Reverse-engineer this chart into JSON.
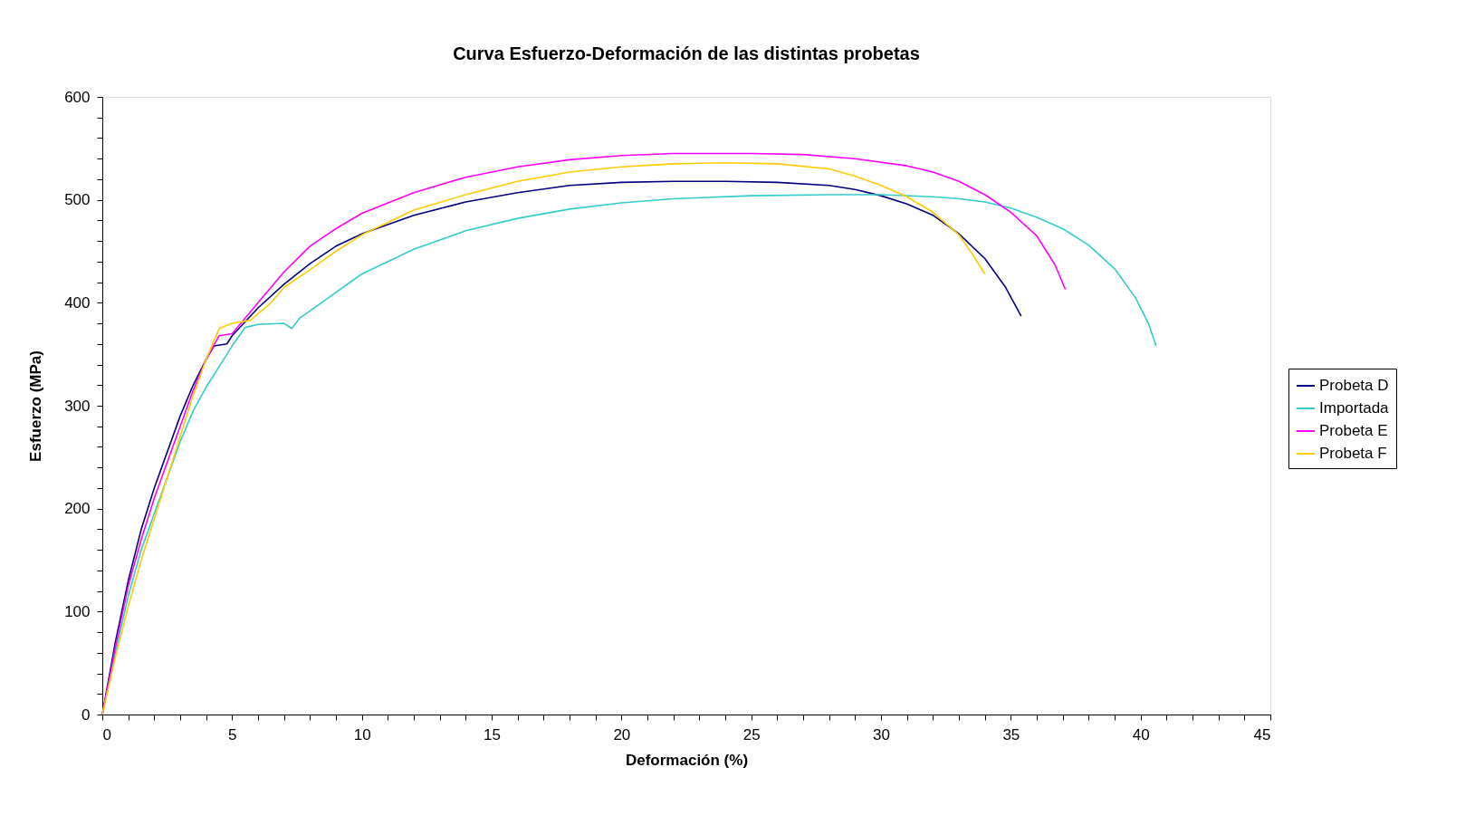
{
  "chart_data": {
    "type": "line",
    "title": "Curva Esfuerzo-Deformación de las distintas probetas",
    "xlabel": "Deformación (%)",
    "ylabel": "Esfuerzo (MPa)",
    "xlim": [
      0,
      45
    ],
    "ylim": [
      0,
      600
    ],
    "xticks": [
      0,
      {
        "value": 1,
        "label": null
      },
      {
        "value": 2,
        "label": null
      },
      {
        "value": 3,
        "label": null
      },
      {
        "value": 4,
        "label": null
      },
      5,
      {
        "value": 6,
        "label": null
      },
      {
        "value": 7,
        "label": null
      },
      {
        "value": 8,
        "label": null
      },
      {
        "value": 9,
        "label": null
      },
      10,
      {
        "value": 11,
        "label": null
      },
      {
        "value": 12,
        "label": null
      },
      {
        "value": 13,
        "label": null
      },
      {
        "value": 14,
        "label": null
      },
      15,
      {
        "value": 16,
        "label": null
      },
      {
        "value": 17,
        "label": null
      },
      {
        "value": 18,
        "label": null
      },
      {
        "value": 19,
        "label": null
      },
      20,
      {
        "value": 21,
        "label": null
      },
      {
        "value": 22,
        "label": null
      },
      {
        "value": 23,
        "label": null
      },
      {
        "value": 24,
        "label": null
      },
      25,
      {
        "value": 26,
        "label": null
      },
      {
        "value": 27,
        "label": null
      },
      {
        "value": 28,
        "label": null
      },
      {
        "value": 29,
        "label": null
      },
      30,
      {
        "value": 31,
        "label": null
      },
      {
        "value": 32,
        "label": null
      },
      {
        "value": 33,
        "label": null
      },
      {
        "value": 34,
        "label": null
      },
      35,
      {
        "value": 36,
        "label": null
      },
      {
        "value": 37,
        "label": null
      },
      {
        "value": 38,
        "label": null
      },
      {
        "value": 39,
        "label": null
      },
      40,
      {
        "value": 41,
        "label": null
      },
      {
        "value": 42,
        "label": null
      },
      {
        "value": 43,
        "label": null
      },
      {
        "value": 44,
        "label": null
      },
      45
    ],
    "yticks": [
      0,
      {
        "value": 20,
        "label": null
      },
      {
        "value": 40,
        "label": null
      },
      {
        "value": 60,
        "label": null
      },
      {
        "value": 80,
        "label": null
      },
      100,
      {
        "value": 120,
        "label": null
      },
      {
        "value": 140,
        "label": null
      },
      {
        "value": 160,
        "label": null
      },
      {
        "value": 180,
        "label": null
      },
      200,
      {
        "value": 220,
        "label": null
      },
      {
        "value": 240,
        "label": null
      },
      {
        "value": 260,
        "label": null
      },
      {
        "value": 280,
        "label": null
      },
      300,
      {
        "value": 320,
        "label": null
      },
      {
        "value": 340,
        "label": null
      },
      {
        "value": 360,
        "label": null
      },
      {
        "value": 380,
        "label": null
      },
      400,
      {
        "value": 420,
        "label": null
      },
      {
        "value": 440,
        "label": null
      },
      {
        "value": 460,
        "label": null
      },
      {
        "value": 480,
        "label": null
      },
      500,
      {
        "value": 520,
        "label": null
      },
      {
        "value": 540,
        "label": null
      },
      {
        "value": 560,
        "label": null
      },
      {
        "value": 580,
        "label": null
      },
      600
    ],
    "grid": false,
    "legend": "right",
    "line_style": "solid",
    "series": [
      {
        "name": "Probeta D",
        "color": "#000080",
        "x": [
          0,
          0.5,
          1,
          1.5,
          2,
          2.5,
          3,
          3.5,
          4,
          4.3,
          4.8,
          5,
          6,
          7,
          8,
          9,
          10,
          12,
          14,
          16,
          18,
          20,
          22,
          24,
          26,
          28,
          29,
          30,
          31,
          32,
          33,
          34,
          34.8,
          35.4
        ],
        "values": [
          0,
          70,
          130,
          180,
          220,
          255,
          290,
          320,
          345,
          358,
          360,
          368,
          395,
          418,
          438,
          455,
          467,
          485,
          498,
          507,
          514,
          517,
          518,
          518,
          517,
          514,
          510,
          504,
          496,
          485,
          467,
          443,
          415,
          387
        ]
      },
      {
        "name": "Importada",
        "color": "#33cccc",
        "x": [
          0,
          0.5,
          1,
          1.5,
          2,
          2.5,
          3,
          3.5,
          4,
          4.5,
          5,
          5.5,
          6,
          7,
          7.3,
          7.6,
          8,
          9,
          10,
          12,
          14,
          16,
          18,
          20,
          22,
          25,
          28,
          30,
          32,
          33,
          34,
          35,
          36,
          37,
          38,
          39,
          39.8,
          40.3,
          40.6
        ],
        "values": [
          0,
          60,
          115,
          160,
          195,
          230,
          265,
          295,
          318,
          338,
          358,
          376,
          379,
          380,
          375,
          385,
          392,
          410,
          428,
          452,
          470,
          482,
          491,
          497,
          501,
          504,
          505,
          505,
          503,
          501,
          498,
          492,
          483,
          472,
          456,
          433,
          405,
          380,
          358
        ]
      },
      {
        "name": "Probeta E",
        "color": "#ff00ff",
        "x": [
          0,
          0.5,
          1,
          1.5,
          2,
          2.5,
          3,
          3.5,
          4,
          4.5,
          5,
          6,
          7,
          8,
          9,
          10,
          12,
          14,
          16,
          18,
          20,
          22,
          25,
          27,
          29,
          31,
          32,
          33,
          34,
          35,
          36,
          36.7,
          37.1
        ],
        "values": [
          0,
          65,
          125,
          170,
          210,
          245,
          280,
          315,
          345,
          368,
          370,
          400,
          430,
          455,
          472,
          487,
          507,
          522,
          532,
          539,
          543,
          545,
          545,
          544,
          540,
          533,
          527,
          518,
          505,
          488,
          465,
          437,
          413
        ]
      },
      {
        "name": "Probeta F",
        "color": "#ffcc00",
        "x": [
          0,
          0.5,
          1,
          1.5,
          2,
          2.5,
          3,
          3.5,
          4,
          4.5,
          5,
          5.7,
          6.5,
          7,
          8,
          9,
          10,
          12,
          14,
          16,
          18,
          20,
          22,
          24,
          26,
          28,
          29,
          30,
          31,
          32,
          33,
          33.5,
          34
        ],
        "values": [
          0,
          55,
          105,
          150,
          190,
          230,
          270,
          310,
          345,
          375,
          380,
          383,
          400,
          415,
          432,
          450,
          466,
          490,
          505,
          518,
          527,
          532,
          535,
          536,
          535,
          530,
          523,
          514,
          503,
          488,
          466,
          448,
          428
        ]
      }
    ]
  }
}
